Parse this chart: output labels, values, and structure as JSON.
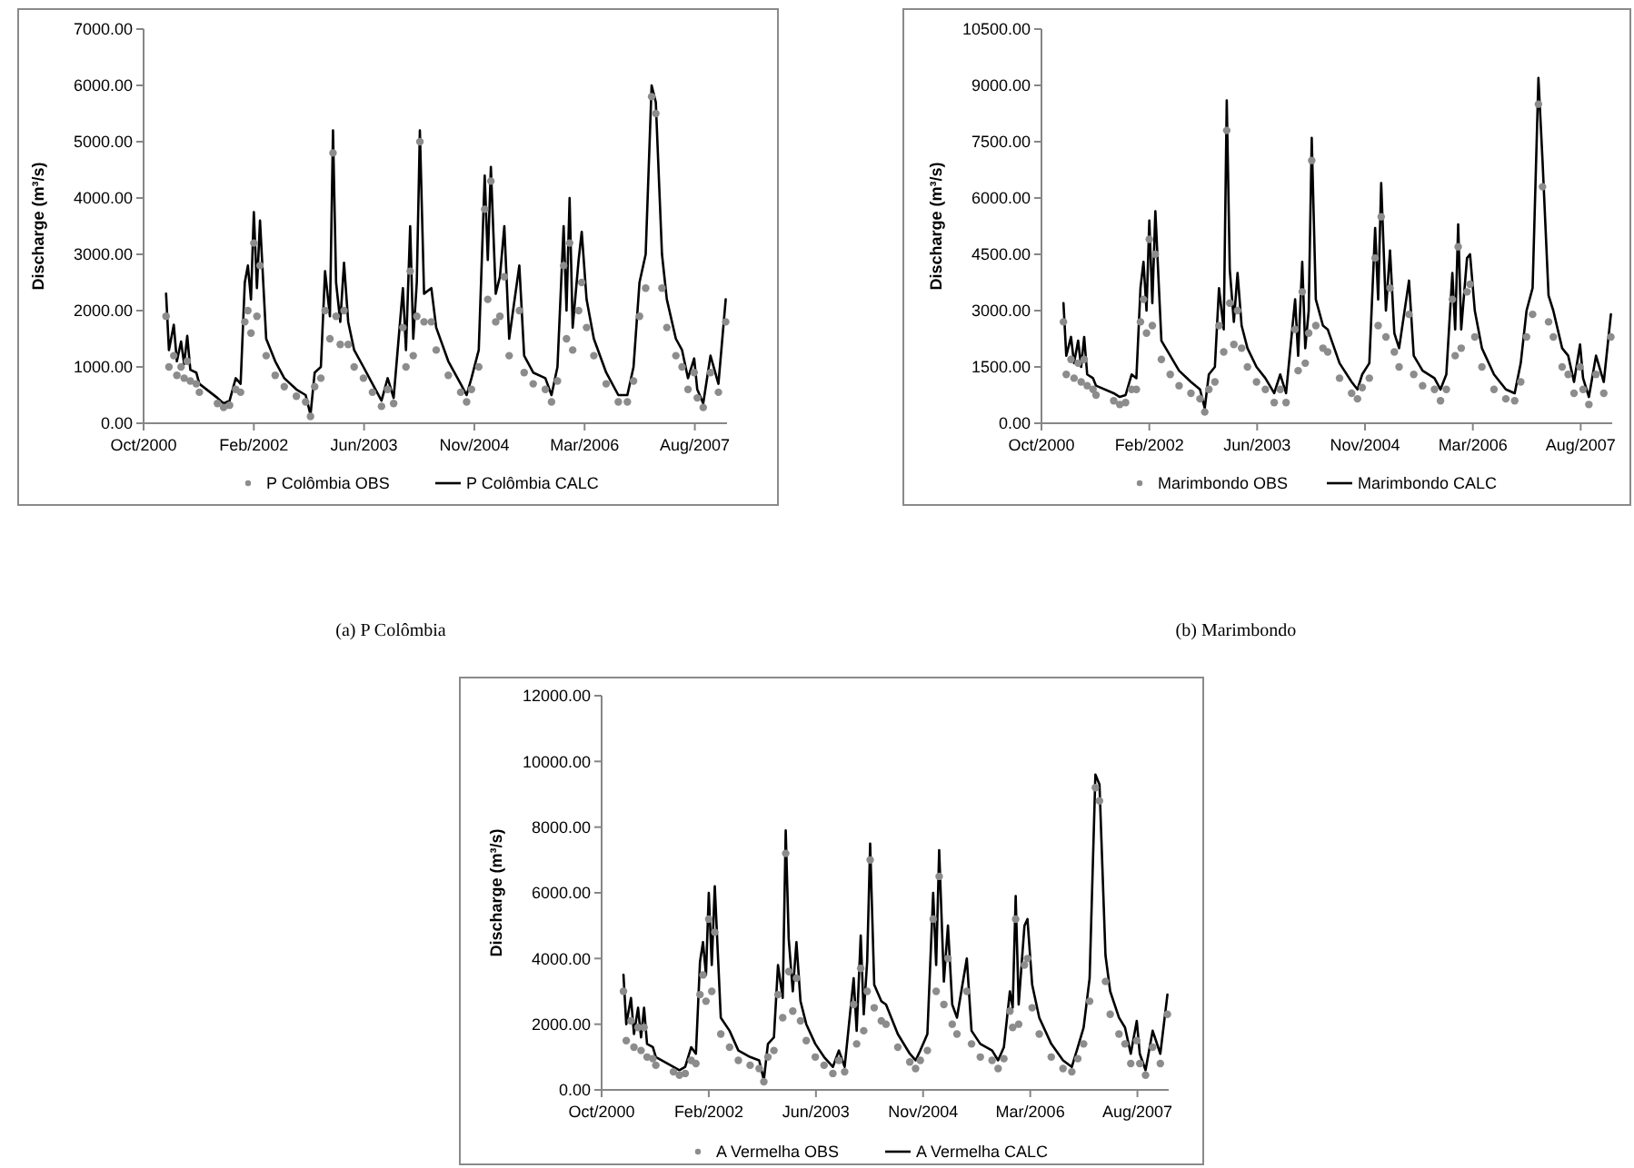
{
  "chart_data": [
    {
      "type": "line",
      "title": "(a) P Colômbia",
      "ylabel": "Discharge (m³/s)",
      "legend": "bottom",
      "xlim": [
        "2000-10-01",
        "2007-12-30"
      ],
      "xticks": [
        {
          "value": "2000-10-01",
          "label": "Oct/2000"
        },
        {
          "value": "2002-02-13",
          "label": "Feb/2002"
        },
        {
          "value": "2003-06-28",
          "label": "Jun/2003"
        },
        {
          "value": "2004-11-09",
          "label": "Nov/2004"
        },
        {
          "value": "2006-03-24",
          "label": "Mar/2006"
        },
        {
          "value": "2007-08-06",
          "label": "Aug/2007"
        }
      ],
      "ylim": [
        0,
        7000
      ],
      "yticks": [
        {
          "value": 0,
          "label": "0.00"
        },
        {
          "value": 1000,
          "label": "1000.00"
        },
        {
          "value": 2000,
          "label": "2000.00"
        },
        {
          "value": 3000,
          "label": "3000.00"
        },
        {
          "value": 4000,
          "label": "4000.00"
        },
        {
          "value": 5000,
          "label": "5000.00"
        },
        {
          "value": 6000,
          "label": "6000.00"
        },
        {
          "value": 7000,
          "label": "7000.00"
        }
      ],
      "x": [
        "2001-01-11",
        "2001-01-24",
        "2001-02-15",
        "2001-03-01",
        "2001-03-20",
        "2001-04-03",
        "2001-04-17",
        "2001-05-01",
        "2001-05-28",
        "2001-06-11",
        "2001-09-01",
        "2001-09-29",
        "2001-10-26",
        "2001-11-23",
        "2001-12-15",
        "2002-01-03",
        "2002-01-17",
        "2002-01-31",
        "2002-02-13",
        "2002-02-27",
        "2002-03-13",
        "2002-04-10",
        "2002-05-21",
        "2002-07-01",
        "2002-08-25",
        "2002-10-06",
        "2002-10-28",
        "2002-11-16",
        "2002-12-14",
        "2003-01-02",
        "2003-01-24",
        "2003-02-07",
        "2003-02-21",
        "2003-03-12",
        "2003-03-29",
        "2003-04-17",
        "2003-05-14",
        "2003-06-25",
        "2003-08-05",
        "2003-09-15",
        "2003-10-13",
        "2003-11-09",
        "2003-12-21",
        "2004-01-04",
        "2004-01-23",
        "2004-02-06",
        "2004-02-22",
        "2004-03-07",
        "2004-03-26",
        "2004-04-28",
        "2004-05-20",
        "2004-07-14",
        "2004-09-08",
        "2004-10-05",
        "2004-10-27",
        "2004-11-29",
        "2004-12-26",
        "2005-01-09",
        "2005-01-23",
        "2005-02-14",
        "2005-03-05",
        "2005-03-25",
        "2005-04-16",
        "2005-06-01",
        "2005-06-23",
        "2005-08-03",
        "2005-09-27",
        "2005-10-25",
        "2005-11-21",
        "2005-12-19",
        "2006-01-01",
        "2006-01-15",
        "2006-01-29",
        "2006-02-25",
        "2006-03-11",
        "2006-04-02",
        "2006-05-05",
        "2006-06-30",
        "2006-08-24",
        "2006-10-04",
        "2006-11-01",
        "2006-11-28",
        "2006-12-26",
        "2007-01-22",
        "2007-02-10",
        "2007-03-10",
        "2007-04-01",
        "2007-05-12",
        "2007-06-09",
        "2007-07-06",
        "2007-08-03",
        "2007-08-17",
        "2007-09-13",
        "2007-10-16",
        "2007-11-21",
        "2007-12-24"
      ],
      "series": [
        {
          "name": "P Colômbia OBS",
          "type": "scatter",
          "marker": "circle",
          "color": "#8c8c8c",
          "values": [
            1900,
            1000,
            1200,
            850,
            1000,
            800,
            1100,
            750,
            700,
            550,
            350,
            280,
            320,
            600,
            550,
            1800,
            2000,
            1600,
            3200,
            1900,
            2800,
            1200,
            850,
            650,
            480,
            380,
            120,
            650,
            800,
            2000,
            1500,
            4800,
            1900,
            1400,
            2000,
            1400,
            1000,
            800,
            550,
            300,
            600,
            350,
            1700,
            1000,
            2700,
            1200,
            1900,
            5000,
            1800,
            1800,
            1300,
            850,
            550,
            380,
            600,
            1000,
            3800,
            2200,
            4300,
            1800,
            1900,
            2600,
            1200,
            2000,
            900,
            700,
            600,
            380,
            750,
            2800,
            1500,
            3200,
            1300,
            2000,
            2500,
            1700,
            1200,
            700,
            380,
            380,
            750,
            1900,
            2400,
            5800,
            5500,
            2400,
            1700,
            1200,
            1000,
            600,
            900,
            450,
            280,
            900,
            550,
            1800
          ]
        },
        {
          "name": "P Colômbia CALC",
          "type": "line",
          "color": "#000000",
          "values": [
            2300,
            1300,
            1750,
            1100,
            1450,
            1050,
            1550,
            950,
            900,
            700,
            450,
            350,
            400,
            800,
            700,
            2500,
            2800,
            2200,
            3750,
            2400,
            3600,
            1500,
            1100,
            800,
            600,
            500,
            150,
            900,
            1000,
            2700,
            1900,
            5200,
            2500,
            1800,
            2850,
            1800,
            1300,
            1000,
            700,
            400,
            800,
            450,
            2400,
            1300,
            3500,
            1500,
            2500,
            5200,
            2300,
            2400,
            1700,
            1100,
            700,
            500,
            800,
            1300,
            4400,
            2900,
            4550,
            2300,
            2600,
            3500,
            1500,
            2800,
            1200,
            900,
            800,
            500,
            1000,
            3500,
            2000,
            4000,
            1700,
            2900,
            3400,
            2200,
            1500,
            900,
            500,
            500,
            1000,
            2500,
            3000,
            6000,
            5700,
            3000,
            2200,
            1500,
            1300,
            800,
            1150,
            600,
            350,
            1200,
            700,
            2200
          ]
        }
      ]
    },
    {
      "type": "line",
      "title": "(b) Marimbondo",
      "ylabel": "Discharge (m³/s)",
      "legend": "bottom",
      "xlim": [
        "2000-10-01",
        "2007-12-30"
      ],
      "xticks": [
        {
          "value": "2000-10-01",
          "label": "Oct/2000"
        },
        {
          "value": "2002-02-13",
          "label": "Feb/2002"
        },
        {
          "value": "2003-06-28",
          "label": "Jun/2003"
        },
        {
          "value": "2004-11-09",
          "label": "Nov/2004"
        },
        {
          "value": "2006-03-24",
          "label": "Mar/2006"
        },
        {
          "value": "2007-08-06",
          "label": "Aug/2007"
        }
      ],
      "ylim": [
        0,
        10500
      ],
      "yticks": [
        {
          "value": 0,
          "label": "0.00"
        },
        {
          "value": 1500,
          "label": "1500.00"
        },
        {
          "value": 3000,
          "label": "3000.00"
        },
        {
          "value": 4500,
          "label": "4500.00"
        },
        {
          "value": 6000,
          "label": "6000.00"
        },
        {
          "value": 7500,
          "label": "7500.00"
        },
        {
          "value": 9000,
          "label": "9000.00"
        },
        {
          "value": 10500,
          "label": "10500.00"
        }
      ],
      "x": [
        "2001-01-11",
        "2001-01-24",
        "2001-02-15",
        "2001-03-01",
        "2001-03-20",
        "2001-04-03",
        "2001-04-17",
        "2001-05-01",
        "2001-05-28",
        "2001-06-11",
        "2001-09-01",
        "2001-09-29",
        "2001-10-26",
        "2001-11-23",
        "2001-12-15",
        "2002-01-03",
        "2002-01-17",
        "2002-01-31",
        "2002-02-13",
        "2002-02-27",
        "2002-03-13",
        "2002-04-10",
        "2002-05-21",
        "2002-07-01",
        "2002-08-25",
        "2002-10-06",
        "2002-10-28",
        "2002-11-16",
        "2002-12-14",
        "2003-01-02",
        "2003-01-24",
        "2003-02-07",
        "2003-02-21",
        "2003-03-12",
        "2003-03-29",
        "2003-04-17",
        "2003-05-14",
        "2003-06-25",
        "2003-08-05",
        "2003-09-15",
        "2003-10-13",
        "2003-11-09",
        "2003-12-21",
        "2004-01-04",
        "2004-01-23",
        "2004-02-06",
        "2004-02-22",
        "2004-03-07",
        "2004-03-26",
        "2004-04-28",
        "2004-05-20",
        "2004-07-14",
        "2004-09-08",
        "2004-10-05",
        "2004-10-27",
        "2004-11-29",
        "2004-12-26",
        "2005-01-09",
        "2005-01-23",
        "2005-02-14",
        "2005-03-05",
        "2005-03-25",
        "2005-04-16",
        "2005-06-01",
        "2005-06-23",
        "2005-08-03",
        "2005-09-27",
        "2005-10-25",
        "2005-11-21",
        "2005-12-19",
        "2006-01-01",
        "2006-01-15",
        "2006-01-29",
        "2006-02-25",
        "2006-03-11",
        "2006-04-02",
        "2006-05-05",
        "2006-06-30",
        "2006-08-24",
        "2006-10-04",
        "2006-11-01",
        "2006-11-28",
        "2006-12-26",
        "2007-01-22",
        "2007-02-10",
        "2007-03-10",
        "2007-04-01",
        "2007-05-12",
        "2007-06-09",
        "2007-07-06",
        "2007-08-03",
        "2007-08-17",
        "2007-09-13",
        "2007-10-16",
        "2007-11-21",
        "2007-12-24"
      ],
      "series": [
        {
          "name": "Marimbondo OBS",
          "type": "scatter",
          "marker": "circle",
          "color": "#8c8c8c",
          "values": [
            2700,
            1300,
            1700,
            1200,
            1600,
            1100,
            1700,
            1000,
            900,
            750,
            600,
            500,
            550,
            900,
            900,
            2700,
            3300,
            2400,
            4900,
            2600,
            4500,
            1700,
            1300,
            1000,
            800,
            650,
            300,
            900,
            1100,
            2600,
            1900,
            7800,
            3200,
            2100,
            3000,
            2000,
            1500,
            1100,
            900,
            550,
            900,
            550,
            2500,
            1400,
            3500,
            1600,
            2400,
            7000,
            2600,
            2000,
            1900,
            1200,
            800,
            650,
            950,
            1200,
            4400,
            2600,
            5500,
            2300,
            3600,
            1900,
            1500,
            2900,
            1300,
            1000,
            900,
            600,
            900,
            3300,
            1800,
            4700,
            2000,
            3500,
            3700,
            2300,
            1500,
            900,
            650,
            600,
            1100,
            2300,
            2900,
            8500,
            6300,
            2700,
            2300,
            1500,
            1300,
            800,
            1500,
            900,
            500,
            1300,
            800,
            2300
          ]
        },
        {
          "name": "Marimbondo CALC",
          "type": "line",
          "color": "#000000",
          "values": [
            3200,
            1800,
            2300,
            1600,
            2200,
            1500,
            2300,
            1300,
            1200,
            1000,
            800,
            700,
            750,
            1300,
            1200,
            3600,
            4300,
            3000,
            5400,
            3200,
            5650,
            2200,
            1800,
            1400,
            1100,
            900,
            400,
            1300,
            1500,
            3600,
            2500,
            8600,
            4100,
            2700,
            4000,
            2600,
            2000,
            1500,
            1200,
            800,
            1300,
            800,
            3300,
            1800,
            4300,
            2000,
            3000,
            7600,
            3300,
            2600,
            2500,
            1600,
            1100,
            900,
            1300,
            1600,
            5200,
            3300,
            6400,
            3000,
            4600,
            2400,
            2000,
            3800,
            1800,
            1400,
            1200,
            900,
            1300,
            4000,
            2500,
            5300,
            2500,
            4400,
            4500,
            3000,
            2000,
            1300,
            900,
            800,
            1600,
            3000,
            3600,
            9200,
            7000,
            3400,
            3000,
            2000,
            1800,
            1100,
            2100,
            1200,
            700,
            1800,
            1100,
            2900
          ]
        }
      ]
    },
    {
      "type": "line",
      "ylabel": "Discharge (m³/s)",
      "legend": "bottom",
      "xlim": [
        "2000-10-01",
        "2007-12-30"
      ],
      "xticks": [
        {
          "value": "2000-10-01",
          "label": "Oct/2000"
        },
        {
          "value": "2002-02-13",
          "label": "Feb/2002"
        },
        {
          "value": "2003-06-28",
          "label": "Jun/2003"
        },
        {
          "value": "2004-11-09",
          "label": "Nov/2004"
        },
        {
          "value": "2006-03-24",
          "label": "Mar/2006"
        },
        {
          "value": "2007-08-06",
          "label": "Aug/2007"
        }
      ],
      "ylim": [
        0,
        12000
      ],
      "yticks": [
        {
          "value": 0,
          "label": "0.00"
        },
        {
          "value": 2000,
          "label": "2000.00"
        },
        {
          "value": 4000,
          "label": "4000.00"
        },
        {
          "value": 6000,
          "label": "6000.00"
        },
        {
          "value": 8000,
          "label": "8000.00"
        },
        {
          "value": 10000,
          "label": "10000.00"
        },
        {
          "value": 12000,
          "label": "12000.00"
        }
      ],
      "x": [
        "2001-01-11",
        "2001-01-24",
        "2001-02-15",
        "2001-03-01",
        "2001-03-20",
        "2001-04-03",
        "2001-04-17",
        "2001-05-01",
        "2001-05-28",
        "2001-06-11",
        "2001-09-01",
        "2001-09-29",
        "2001-10-26",
        "2001-11-23",
        "2001-12-15",
        "2002-01-03",
        "2002-01-17",
        "2002-01-31",
        "2002-02-13",
        "2002-02-27",
        "2002-03-13",
        "2002-04-10",
        "2002-05-21",
        "2002-07-01",
        "2002-08-25",
        "2002-10-06",
        "2002-10-28",
        "2002-11-16",
        "2002-12-14",
        "2003-01-02",
        "2003-01-24",
        "2003-02-07",
        "2003-02-21",
        "2003-03-12",
        "2003-03-29",
        "2003-04-17",
        "2003-05-14",
        "2003-06-25",
        "2003-08-05",
        "2003-09-15",
        "2003-10-13",
        "2003-11-09",
        "2003-12-21",
        "2004-01-04",
        "2004-01-23",
        "2004-02-06",
        "2004-02-22",
        "2004-03-07",
        "2004-03-26",
        "2004-04-28",
        "2004-05-20",
        "2004-07-14",
        "2004-09-08",
        "2004-10-05",
        "2004-10-27",
        "2004-11-29",
        "2004-12-26",
        "2005-01-09",
        "2005-01-23",
        "2005-02-14",
        "2005-03-05",
        "2005-03-25",
        "2005-04-16",
        "2005-06-01",
        "2005-06-23",
        "2005-08-03",
        "2005-09-27",
        "2005-10-25",
        "2005-11-21",
        "2005-12-19",
        "2006-01-01",
        "2006-01-15",
        "2006-01-29",
        "2006-02-25",
        "2006-03-11",
        "2006-04-02",
        "2006-05-05",
        "2006-06-30",
        "2006-08-24",
        "2006-10-04",
        "2006-11-01",
        "2006-11-28",
        "2006-12-26",
        "2007-01-22",
        "2007-02-10",
        "2007-03-10",
        "2007-04-01",
        "2007-05-12",
        "2007-06-09",
        "2007-07-06",
        "2007-08-03",
        "2007-08-17",
        "2007-09-13",
        "2007-10-16",
        "2007-11-21",
        "2007-12-24"
      ],
      "series": [
        {
          "name": "A Vermelha OBS",
          "type": "scatter",
          "marker": "circle",
          "color": "#8c8c8c",
          "values": [
            3000,
            1500,
            2100,
            1300,
            1900,
            1200,
            1900,
            1000,
            950,
            750,
            550,
            450,
            500,
            900,
            800,
            2900,
            3500,
            2700,
            5200,
            3000,
            4800,
            1700,
            1300,
            900,
            750,
            650,
            250,
            1000,
            1200,
            2900,
            2200,
            7200,
            3600,
            2400,
            3400,
            2100,
            1500,
            1000,
            750,
            500,
            900,
            550,
            2600,
            1400,
            3700,
            1800,
            3000,
            7000,
            2500,
            2100,
            2000,
            1300,
            850,
            650,
            900,
            1200,
            5200,
            3000,
            6500,
            2600,
            4000,
            2000,
            1700,
            3000,
            1400,
            1000,
            900,
            650,
            950,
            2400,
            1900,
            5200,
            2000,
            3800,
            4000,
            2500,
            1700,
            1000,
            650,
            550,
            950,
            1400,
            2700,
            9200,
            8800,
            3300,
            2300,
            1700,
            1400,
            800,
            1500,
            800,
            450,
            1300,
            800,
            2300
          ]
        },
        {
          "name": "A Vermelha CALC",
          "type": "line",
          "color": "#000000",
          "values": [
            3500,
            2000,
            2800,
            1700,
            2500,
            1600,
            2500,
            1400,
            1300,
            1000,
            700,
            600,
            700,
            1300,
            1100,
            3900,
            4500,
            3500,
            6000,
            3800,
            6200,
            2200,
            1800,
            1200,
            1000,
            900,
            300,
            1400,
            1600,
            3800,
            2800,
            7900,
            4600,
            3000,
            4500,
            2700,
            2000,
            1400,
            1000,
            700,
            1200,
            700,
            3400,
            1800,
            4700,
            2300,
            3900,
            7500,
            3200,
            2700,
            2600,
            1700,
            1100,
            900,
            1200,
            1700,
            6000,
            3800,
            7300,
            3300,
            5000,
            2600,
            2200,
            4000,
            1800,
            1400,
            1200,
            900,
            1300,
            3000,
            2500,
            5900,
            2600,
            5000,
            5200,
            3200,
            2200,
            1400,
            900,
            700,
            1300,
            1900,
            3400,
            9600,
            9300,
            4100,
            3000,
            2200,
            1900,
            1100,
            2100,
            1100,
            600,
            1800,
            1100,
            2900
          ]
        }
      ]
    }
  ]
}
